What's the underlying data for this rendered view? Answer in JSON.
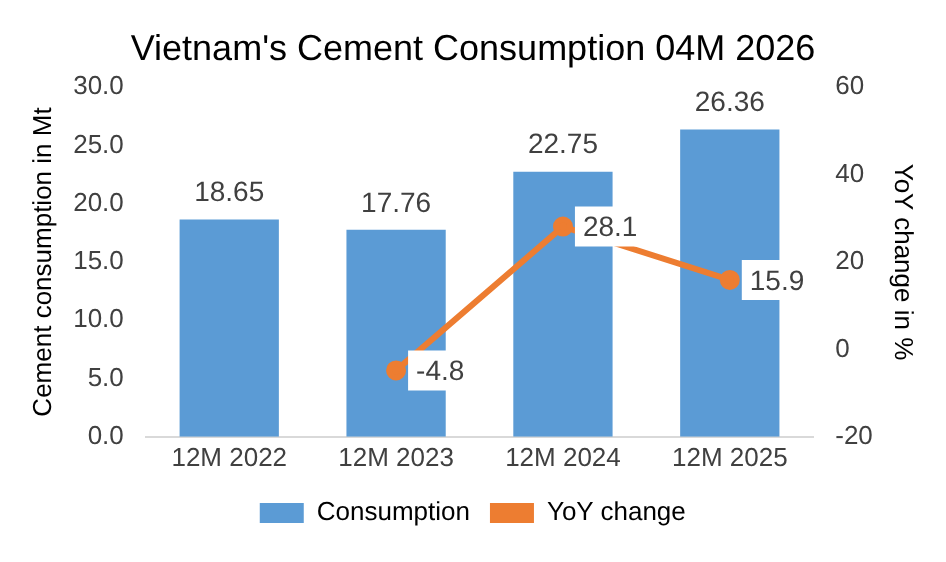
{
  "chart_data": {
    "type": "bar",
    "title": "Vietnam's Cement Consumption 04M 2026",
    "categories": [
      "12M 2022",
      "12M 2023",
      "12M 2024",
      "12M 2025"
    ],
    "series": [
      {
        "name": "Consumption",
        "color": "#5b9bd5",
        "values": [
          18.65,
          17.76,
          22.75,
          26.36
        ]
      },
      {
        "name": "YoY change",
        "type": "line",
        "axis": "y2",
        "color": "#ed7d31",
        "marker": "circle",
        "values": [
          null,
          -4.8,
          28.1,
          15.9
        ]
      }
    ],
    "ylabel": "Cement consumption in Mt",
    "y2label": "YoY change in %",
    "ylim": [
      0,
      30
    ],
    "yticks": [
      {
        "value": 0,
        "label": "0.0"
      },
      {
        "value": 5,
        "label": "5.0"
      },
      {
        "value": 10,
        "label": "10.0"
      },
      {
        "value": 15,
        "label": "15.0"
      },
      {
        "value": 20,
        "label": "20.0"
      },
      {
        "value": 25,
        "label": "25.0"
      },
      {
        "value": 30,
        "label": "30.0"
      }
    ],
    "y2lim": [
      -20,
      60
    ],
    "y2ticks": [
      -20,
      0,
      20,
      40,
      60
    ],
    "data_labels": true,
    "grid": false,
    "legend": "bottom"
  }
}
